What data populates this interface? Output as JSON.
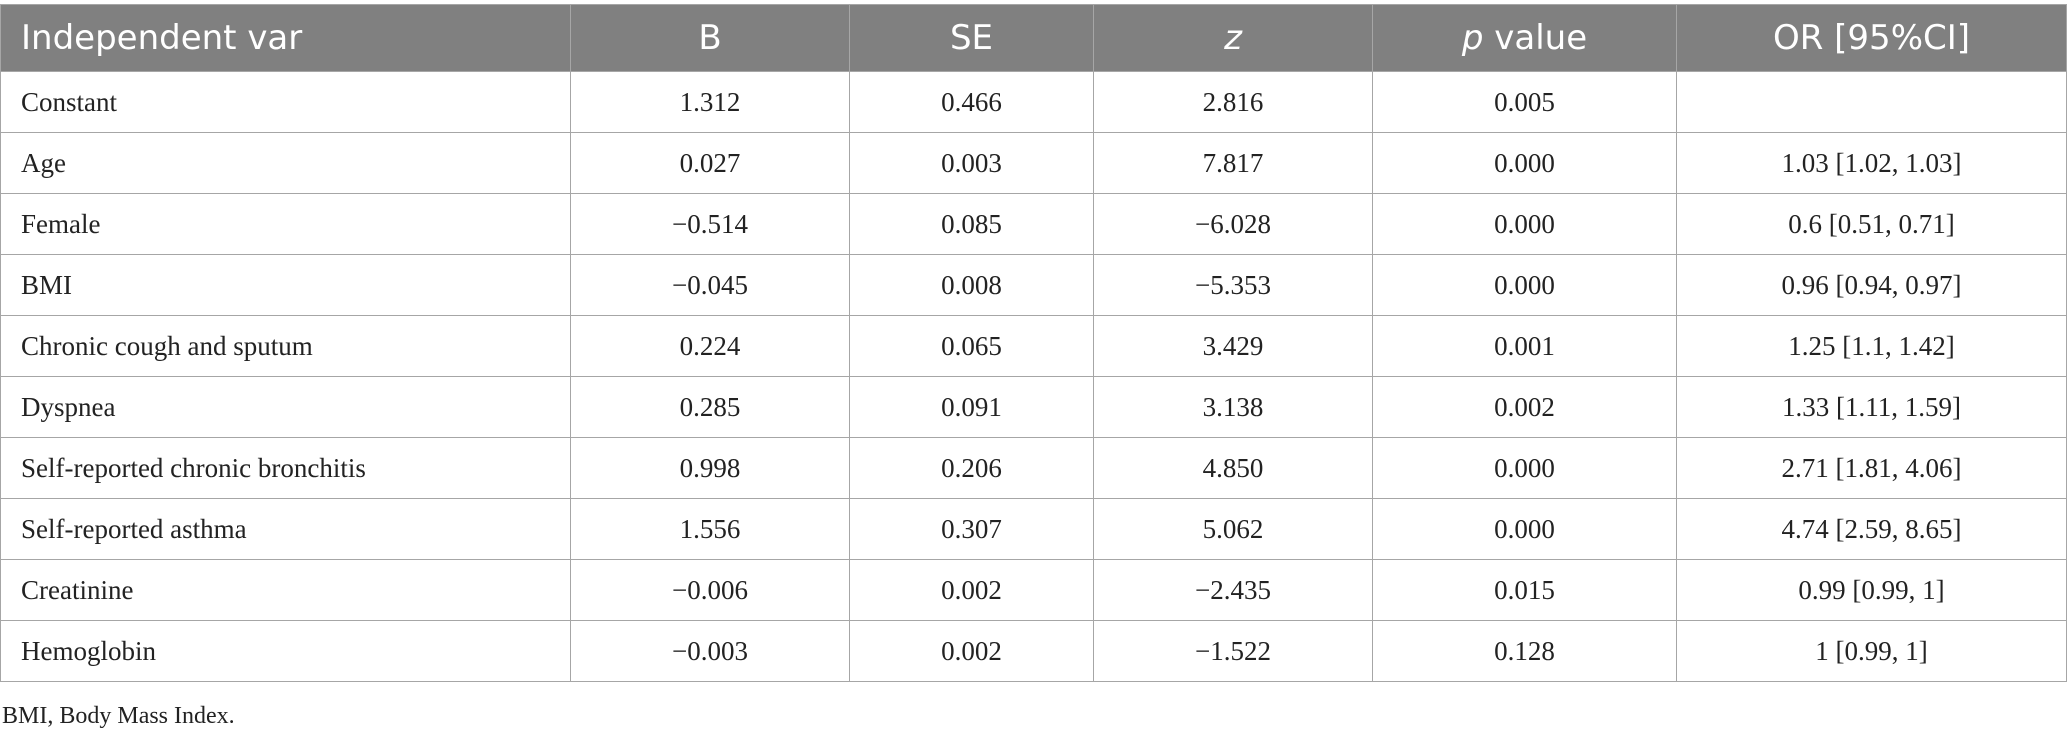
{
  "table": {
    "columns": [
      {
        "text": "Independent var",
        "italic": ""
      },
      {
        "text": "B",
        "italic": ""
      },
      {
        "text": "SE",
        "italic": ""
      },
      {
        "text": "",
        "italic": "z"
      },
      {
        "text": " value",
        "italic": "p"
      },
      {
        "text": "OR [95%CI]",
        "italic": ""
      }
    ],
    "rows": [
      {
        "variable": "Constant",
        "b": "1.312",
        "se": "0.466",
        "z": "2.816",
        "p": "0.005",
        "or": ""
      },
      {
        "variable": "Age",
        "b": "0.027",
        "se": "0.003",
        "z": "7.817",
        "p": "0.000",
        "or": "1.03 [1.02, 1.03]"
      },
      {
        "variable": "Female",
        "b": "−0.514",
        "se": "0.085",
        "z": "−6.028",
        "p": "0.000",
        "or": "0.6 [0.51, 0.71]"
      },
      {
        "variable": "BMI",
        "b": "−0.045",
        "se": "0.008",
        "z": "−5.353",
        "p": "0.000",
        "or": "0.96 [0.94, 0.97]"
      },
      {
        "variable": "Chronic cough and sputum",
        "b": "0.224",
        "se": "0.065",
        "z": "3.429",
        "p": "0.001",
        "or": "1.25 [1.1, 1.42]"
      },
      {
        "variable": "Dyspnea",
        "b": "0.285",
        "se": "0.091",
        "z": "3.138",
        "p": "0.002",
        "or": "1.33 [1.11, 1.59]"
      },
      {
        "variable": "Self-reported chronic bronchitis",
        "b": "0.998",
        "se": "0.206",
        "z": "4.850",
        "p": "0.000",
        "or": "2.71 [1.81, 4.06]"
      },
      {
        "variable": "Self-reported asthma",
        "b": "1.556",
        "se": "0.307",
        "z": "5.062",
        "p": "0.000",
        "or": "4.74 [2.59, 8.65]"
      },
      {
        "variable": "Creatinine",
        "b": "−0.006",
        "se": "0.002",
        "z": "−2.435",
        "p": "0.015",
        "or": "0.99 [0.99, 1]"
      },
      {
        "variable": "Hemoglobin",
        "b": "−0.003",
        "se": "0.002",
        "z": "−1.522",
        "p": "0.128",
        "or": "1 [0.99, 1]"
      }
    ]
  },
  "footnote": "BMI, Body Mass Index.",
  "colors": {
    "header_bg": "#808080",
    "header_text": "#ffffff",
    "border": "#a6a6a6",
    "body_text": "#222222"
  }
}
